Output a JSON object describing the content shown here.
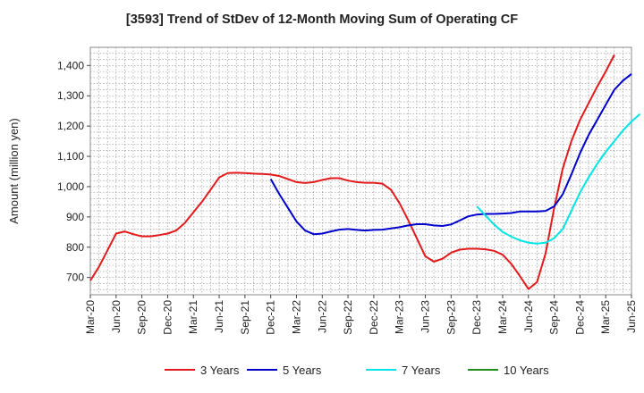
{
  "chart_data": {
    "type": "line",
    "title": "[3593]  Trend of StDev of 12-Month Moving Sum of Operating CF",
    "xlabel": "",
    "ylabel": "Amount (million yen)",
    "ylim": [
      643,
      1460
    ],
    "y_ticks": [
      700,
      800,
      900,
      1000,
      1100,
      1200,
      1300,
      1400
    ],
    "y_tick_labels": [
      "700",
      "800",
      "900",
      "1,000",
      "1,100",
      "1,200",
      "1,300",
      "1,400"
    ],
    "x_tick_labels": [
      "Mar-20",
      "Jun-20",
      "Sep-20",
      "Dec-20",
      "Mar-21",
      "Jun-21",
      "Sep-21",
      "Dec-21",
      "Mar-22",
      "Jun-22",
      "Sep-22",
      "Dec-22",
      "Mar-23",
      "Jun-23",
      "Sep-23",
      "Dec-23",
      "Mar-24",
      "Jun-24",
      "Sep-24",
      "Dec-24",
      "Mar-25",
      "Jun-25"
    ],
    "grid": true,
    "legend_position": "bottom",
    "series": [
      {
        "name": "3 Years",
        "color": "#e31a1c",
        "start_month": 0,
        "values": [
          690,
          735,
          790,
          845,
          852,
          843,
          836,
          836,
          840,
          845,
          855,
          880,
          915,
          950,
          990,
          1030,
          1045,
          1046,
          1045,
          1043,
          1042,
          1040,
          1035,
          1025,
          1015,
          1012,
          1015,
          1022,
          1028,
          1028,
          1020,
          1015,
          1013,
          1013,
          1010,
          990,
          945,
          890,
          830,
          770,
          752,
          762,
          782,
          792,
          795,
          795,
          793,
          788,
          775,
          745,
          705,
          662,
          685,
          780,
          930,
          1060,
          1150,
          1220,
          1275,
          1330,
          1380,
          1435
        ]
      },
      {
        "name": "5 Years",
        "color": "#0000cc",
        "start_month": 21,
        "values": [
          1025,
          975,
          930,
          885,
          855,
          843,
          845,
          852,
          858,
          860,
          857,
          855,
          857,
          858,
          862,
          866,
          872,
          876,
          876,
          872,
          870,
          875,
          888,
          902,
          908,
          910,
          910,
          911,
          913,
          918,
          918,
          918,
          920,
          935,
          975,
          1040,
          1110,
          1170,
          1220,
          1270,
          1320,
          1350,
          1372
        ]
      },
      {
        "name": "7 Years",
        "color": "#00e5e5",
        "start_month": 45,
        "values": [
          935,
          905,
          875,
          850,
          835,
          823,
          815,
          812,
          815,
          830,
          860,
          920,
          980,
          1030,
          1075,
          1115,
          1150,
          1185,
          1215,
          1240
        ]
      },
      {
        "name": "10 Years",
        "color": "#228b22",
        "start_month": 0,
        "values": []
      }
    ]
  }
}
